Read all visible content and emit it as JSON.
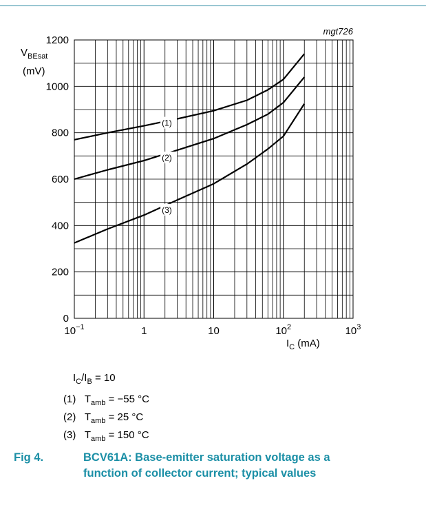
{
  "chart_data": {
    "type": "line",
    "id_label": "mgt726",
    "x_scale": "log",
    "xlim": [
      0.1,
      1000
    ],
    "ylim": [
      0,
      1200
    ],
    "x_ticks": [
      {
        "v": 0.1,
        "base": "10",
        "exp": "−1"
      },
      {
        "v": 1,
        "base": "1",
        "exp": ""
      },
      {
        "v": 10,
        "base": "10",
        "exp": ""
      },
      {
        "v": 100,
        "base": "10",
        "exp": "2"
      },
      {
        "v": 1000,
        "base": "10",
        "exp": "3"
      }
    ],
    "y_ticks": [
      0,
      200,
      400,
      600,
      800,
      1000,
      1200
    ],
    "y_minor_step": 100,
    "xlabel": {
      "main": "I",
      "sub": "C",
      "unit": " (mA)"
    },
    "ylabel": {
      "main": "V",
      "sub": "BEsat",
      "unit": "(mV)"
    },
    "grid": true,
    "series": [
      {
        "name": "(1)",
        "label_at": [
          1.8,
          830
        ],
        "points": [
          [
            0.1,
            770
          ],
          [
            0.3,
            800
          ],
          [
            1,
            830
          ],
          [
            3,
            860
          ],
          [
            10,
            895
          ],
          [
            30,
            940
          ],
          [
            60,
            985
          ],
          [
            100,
            1030
          ],
          [
            200,
            1140
          ]
        ]
      },
      {
        "name": "(2)",
        "label_at": [
          1.8,
          680
        ],
        "points": [
          [
            0.1,
            600
          ],
          [
            0.3,
            640
          ],
          [
            1,
            680
          ],
          [
            3,
            725
          ],
          [
            10,
            775
          ],
          [
            30,
            835
          ],
          [
            60,
            880
          ],
          [
            100,
            930
          ],
          [
            200,
            1040
          ]
        ]
      },
      {
        "name": "(3)",
        "label_at": [
          1.8,
          455
        ],
        "points": [
          [
            0.1,
            325
          ],
          [
            0.3,
            385
          ],
          [
            1,
            445
          ],
          [
            3,
            510
          ],
          [
            10,
            580
          ],
          [
            30,
            665
          ],
          [
            60,
            730
          ],
          [
            100,
            785
          ],
          [
            200,
            925
          ]
        ]
      }
    ]
  },
  "notes": {
    "ratio": {
      "a": "I",
      "a_sub": "C",
      "slash": "/",
      "b": "I",
      "b_sub": "B",
      "rest": " = 10"
    },
    "conditions": [
      {
        "num": "(1)",
        "t": "T",
        "t_sub": "amb",
        "rest": " = −55 °C"
      },
      {
        "num": "(2)",
        "t": "T",
        "t_sub": "amb",
        "rest": " = 25 °C"
      },
      {
        "num": "(3)",
        "t": "T",
        "t_sub": "amb",
        "rest": " = 150 °C"
      }
    ]
  },
  "figure": {
    "number": "Fig 4.",
    "caption": "BCV61A: Base-emitter saturation voltage as a function of collector current; typical values"
  }
}
